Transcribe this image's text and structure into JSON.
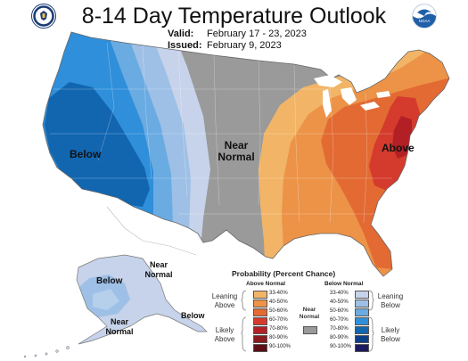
{
  "header": {
    "title": "8-14 Day Temperature Outlook",
    "valid_label": "Valid:",
    "valid_value": "February 17 - 23, 2023",
    "issued_label": "Issued:",
    "issued_value": "February 9, 2023",
    "left_logo": "doc-seal-icon",
    "right_logo": "noaa-logo-icon"
  },
  "map_labels": {
    "west": "Below",
    "central_line1": "Near",
    "central_line2": "Normal",
    "east": "Above",
    "ak_below": "Below",
    "ak_near_north_1": "Near",
    "ak_near_north_2": "Normal",
    "ak_near_south_1": "Near",
    "ak_near_south_2": "Normal",
    "ak_below_se": "Below"
  },
  "colors": {
    "near_normal": "#9a9a9a",
    "above": [
      "#f2b466",
      "#ec9348",
      "#e36a33",
      "#d43b2d",
      "#b21f24",
      "#8b1a1f",
      "#5c0f14"
    ],
    "below": [
      "#c6d3ea",
      "#9ec0e6",
      "#6aabe2",
      "#2f8fda",
      "#1266b0",
      "#0d3f88",
      "#1c1a5e"
    ]
  },
  "legend": {
    "title": "Probability (Percent Chance)",
    "above_header": "Above Normal",
    "below_header": "Below Normal",
    "ranges": [
      "33-40%",
      "40-50%",
      "50-60%",
      "60-70%",
      "70-80%",
      "80-90%",
      "90-100%"
    ],
    "leaning_above_1": "Leaning",
    "leaning_above_2": "Above",
    "likely_above_1": "Likely",
    "likely_above_2": "Above",
    "near_normal_1": "Near",
    "near_normal_2": "Normal",
    "leaning_below_1": "Leaning",
    "leaning_below_2": "Below",
    "likely_below_1": "Likely",
    "likely_below_2": "Below"
  }
}
